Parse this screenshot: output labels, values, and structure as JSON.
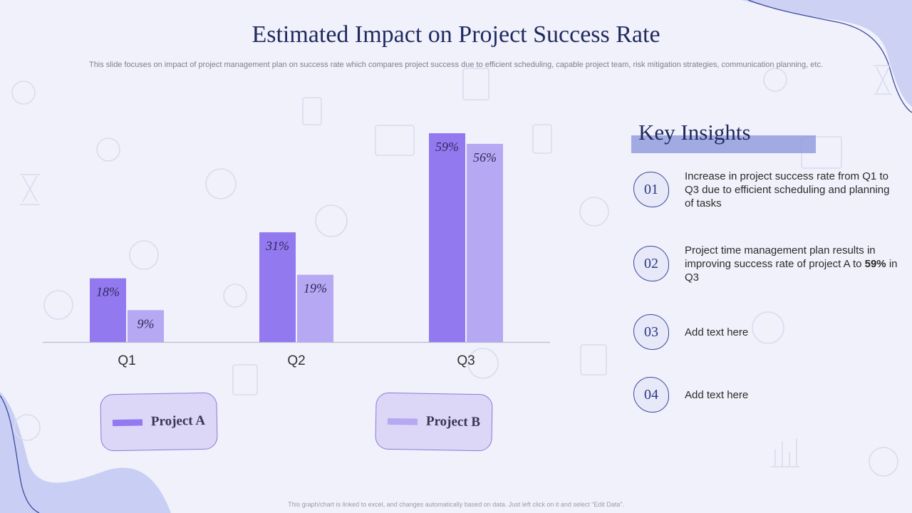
{
  "header": {
    "title": "Estimated Impact on Project Success Rate",
    "subtitle": "This slide focuses on impact of project management plan on success rate which compares project success due to efficient scheduling, capable project team, risk mitigation strategies, communication planning, etc."
  },
  "chart_data": {
    "type": "bar",
    "title": "",
    "categories": [
      "Q1",
      "Q2",
      "Q3"
    ],
    "series": [
      {
        "name": "Project A",
        "values": [
          18,
          31,
          59
        ],
        "labels": [
          "18%",
          "31%",
          "59%"
        ],
        "color": "#9379ef"
      },
      {
        "name": "Project B",
        "values": [
          9,
          19,
          56
        ],
        "labels": [
          "9%",
          "19%",
          "56%"
        ],
        "color": "#b6a8f2"
      }
    ],
    "ylim": [
      0,
      59
    ],
    "xlabel": "",
    "ylabel": "",
    "grid": false,
    "legend_position": "bottom"
  },
  "legend": {
    "a_label": "Project A",
    "b_label": "Project B"
  },
  "insights": {
    "title": "Key Insights",
    "items": [
      {
        "num": "01",
        "text": "Increase  in project success rate from Q1 to Q3 due to efficient scheduling and planning of tasks"
      },
      {
        "num": "02",
        "text_before": "Project time management plan results in improving success rate of project A to ",
        "highlight": "59%",
        "text_after": " in Q3"
      },
      {
        "num": "03",
        "text": "Add text here"
      },
      {
        "num": "04",
        "text": "Add text here"
      }
    ]
  },
  "footer": {
    "note": "This graph/chart is linked to excel, and changes automatically based on data. Just left click on it and select “Edit Data”."
  },
  "colors": {
    "title": "#1f2a5e",
    "accent": "#3b4a9c",
    "background": "#f1f1fb"
  }
}
